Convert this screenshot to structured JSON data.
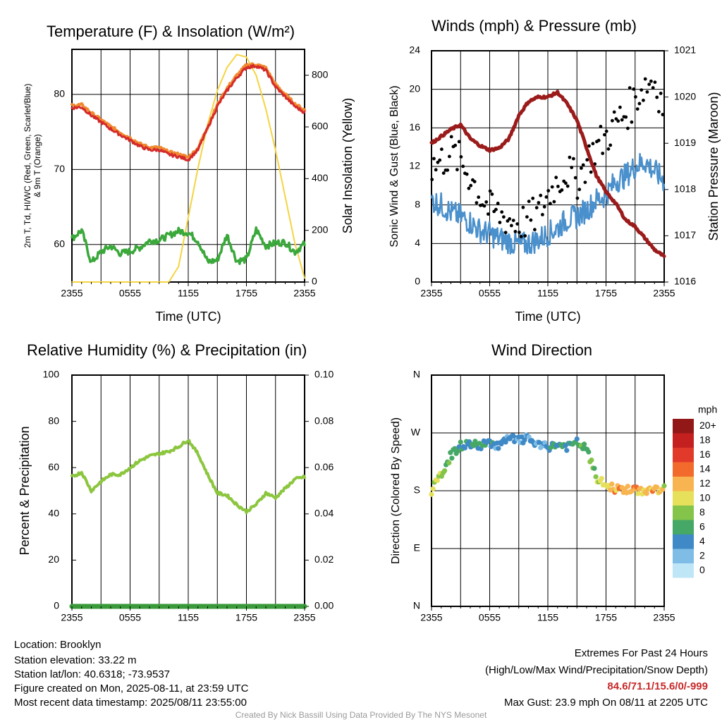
{
  "titles": {
    "temp": "Temperature (F) & Insolation (W/m²)",
    "wind": "Winds (mph) & Pressure (mb)",
    "rh": "Relative Humidity (%) & Precipitation (in)",
    "dir": "Wind Direction"
  },
  "axes": {
    "time_label": "Time (UTC)",
    "time_ticks": [
      "2355",
      "0555",
      "1155",
      "1755",
      "2355"
    ],
    "temp_ylabel_line1": "2m T, Td, HI/WC (Red, Green, Scarlet/Blue)",
    "temp_ylabel_line2": "& 9m T (Orange)",
    "temp_yticks": [
      "60",
      "70",
      "80"
    ],
    "insol_ylabel": "Solar Insolation (Yellow)",
    "insol_yticks": [
      "0",
      "200",
      "400",
      "600",
      "800"
    ],
    "wind_ylabel": "Sonic Wind & Gust (Blue, Black)",
    "wind_yticks": [
      "0",
      "4",
      "8",
      "12",
      "16",
      "20",
      "24"
    ],
    "pres_ylabel": "Station Pressure (Maroon)",
    "pres_yticks": [
      "1016",
      "1017",
      "1018",
      "1019",
      "1020",
      "1021"
    ],
    "rh_ylabel": "Percent & Precipitation",
    "rh_yticks": [
      "0",
      "20",
      "40",
      "60",
      "80",
      "100"
    ],
    "precip_yticks": [
      "0.00",
      "0.02",
      "0.04",
      "0.06",
      "0.08",
      "0.10"
    ],
    "dir_ylabel": "Direction (Colored By Speed)",
    "dir_yticks": [
      "N",
      "E",
      "S",
      "W",
      "N"
    ]
  },
  "colorbar": {
    "unit": "mph",
    "labels": [
      "0",
      "2",
      "4",
      "6",
      "8",
      "10",
      "12",
      "14",
      "16",
      "18",
      "20+"
    ],
    "colors": [
      "#bfe6f7",
      "#7fbde6",
      "#3f89c6",
      "#46a866",
      "#84c44a",
      "#e6e05a",
      "#f8b450",
      "#f26a2c",
      "#e23a2a",
      "#c42020",
      "#921818"
    ]
  },
  "footer": {
    "location": "Location: Brooklyn",
    "elevation": "Station elevation: 33.22 m",
    "latlon": "Station lat/lon: 40.6318; -73.9537",
    "created": "Figure created on Mon, 2025-08-11, at 23:59 UTC",
    "recent": "Most recent data timestamp: 2025/08/11 23:55:00",
    "extremes_title": "Extremes For Past 24 Hours",
    "extremes_legend": "(High/Low/Max Wind/Precipitation/Snow Depth)",
    "extremes_values": "84.6/71.1/15.6/0/-999",
    "max_gust": "Max Gust: 23.9 mph On 08/11 at 2205 UTC",
    "credit": "Created By Nick Bassill Using Data Provided By The NYS Mesonet"
  },
  "colors": {
    "temp": "#d42a2a",
    "temp9m": "#f08a30",
    "dewpoint": "#3aa83a",
    "insolation": "#f4d442",
    "wind": "#4a90cc",
    "gust": "#000000",
    "pressure": "#9b1b1b",
    "rh": "#8cc63f",
    "precip": "#3a9a3a",
    "extremes": "#c62828"
  },
  "chart_data": [
    {
      "type": "line",
      "panel": "temp",
      "x_hours": [
        0,
        1,
        2,
        3,
        4,
        5,
        6,
        7,
        8,
        9,
        10,
        11,
        12,
        13,
        14,
        15,
        16,
        17,
        18,
        19,
        20,
        21,
        22,
        23,
        24
      ],
      "ylim": [
        55,
        86
      ],
      "ylim_right": [
        0,
        900
      ],
      "series": [
        {
          "name": "2m T",
          "color": "#d42a2a",
          "values": [
            78.2,
            78.3,
            77.2,
            76.3,
            75.4,
            74.6,
            73.9,
            73.1,
            72.6,
            72.6,
            72.0,
            71.7,
            71.3,
            72.6,
            75.5,
            78.4,
            80.5,
            82.2,
            83.6,
            83.8,
            83.2,
            81.0,
            79.7,
            78.4,
            77.6
          ]
        },
        {
          "name": "9m T",
          "color": "#f08a30",
          "values": [
            78.5,
            78.6,
            77.5,
            76.6,
            75.7,
            74.9,
            74.2,
            73.4,
            72.9,
            72.9,
            72.3,
            72.0,
            71.6,
            72.8,
            75.7,
            78.6,
            80.8,
            82.5,
            83.9,
            84.0,
            83.5,
            81.3,
            80.0,
            78.7,
            77.9
          ]
        },
        {
          "name": "Td",
          "color": "#3aa83a",
          "values": [
            60.8,
            61.9,
            57.6,
            59.0,
            59.8,
            58.8,
            59.1,
            59.6,
            60.5,
            60.6,
            61.2,
            61.8,
            61.6,
            60.5,
            57.7,
            57.9,
            61.3,
            57.8,
            58.0,
            62.0,
            59.8,
            60.2,
            60.3,
            59.0,
            60.1
          ]
        },
        {
          "name": "Solar Insolation",
          "axis": "right",
          "color": "#f4d442",
          "values": [
            0,
            0,
            0,
            0,
            0,
            0,
            0,
            0,
            0,
            0,
            0,
            60,
            250,
            440,
            610,
            740,
            830,
            880,
            870,
            800,
            670,
            510,
            330,
            150,
            15
          ]
        }
      ]
    },
    {
      "type": "line",
      "panel": "wind",
      "x_hours": [
        0,
        1,
        2,
        3,
        4,
        5,
        6,
        7,
        8,
        9,
        10,
        11,
        12,
        13,
        14,
        15,
        16,
        17,
        18,
        19,
        20,
        21,
        22,
        23,
        24
      ],
      "ylim": [
        0,
        24
      ],
      "ylim_right": [
        1016,
        1021
      ],
      "series": [
        {
          "name": "Sonic Wind",
          "color": "#4a90cc",
          "values": [
            8.5,
            8.0,
            7.2,
            6.8,
            6.2,
            5.3,
            5.0,
            4.5,
            4.2,
            3.8,
            4.0,
            4.4,
            5.0,
            5.6,
            6.5,
            6.8,
            7.5,
            8.5,
            9.0,
            10.5,
            11.0,
            12.0,
            12.5,
            11.5,
            10.5
          ]
        },
        {
          "name": "Gust",
          "color": "#000000",
          "values": [
            12.0,
            12.5,
            13.5,
            12.5,
            11.0,
            9.0,
            7.5,
            7.0,
            6.5,
            6.0,
            6.5,
            7.0,
            9.0,
            10.5,
            11.5,
            10.5,
            12.5,
            14.0,
            15.0,
            16.5,
            17.5,
            19.0,
            20.5,
            21.0,
            18.0
          ]
        },
        {
          "name": "Station Pressure",
          "axis": "right",
          "color": "#9b1b1b",
          "values": [
            1019.0,
            1019.15,
            1019.3,
            1019.4,
            1019.1,
            1018.95,
            1018.85,
            1018.9,
            1019.1,
            1019.6,
            1019.9,
            1020.0,
            1020.0,
            1020.1,
            1019.85,
            1019.5,
            1018.9,
            1018.3,
            1017.95,
            1017.7,
            1017.35,
            1017.2,
            1016.95,
            1016.7,
            1016.55
          ]
        }
      ]
    },
    {
      "type": "line",
      "panel": "rh",
      "x_hours": [
        0,
        1,
        2,
        3,
        4,
        5,
        6,
        7,
        8,
        9,
        10,
        11,
        12,
        13,
        14,
        15,
        16,
        17,
        18,
        19,
        20,
        21,
        22,
        23,
        24
      ],
      "ylim": [
        0,
        100
      ],
      "ylim_right": [
        0.0,
        0.1
      ],
      "series": [
        {
          "name": "Relative Humidity",
          "color": "#8cc63f",
          "values": [
            56,
            58,
            50,
            54,
            57,
            57,
            60,
            63,
            65,
            66,
            67,
            69,
            72,
            66,
            57,
            49,
            48,
            44,
            41,
            44,
            49,
            47,
            51,
            55,
            56
          ]
        },
        {
          "name": "Precipitation",
          "axis": "right",
          "color": "#3a9a3a",
          "values": [
            0,
            0,
            0,
            0,
            0,
            0,
            0,
            0,
            0,
            0,
            0,
            0,
            0,
            0,
            0,
            0,
            0,
            0,
            0,
            0,
            0,
            0,
            0,
            0,
            0
          ]
        }
      ]
    },
    {
      "type": "scatter",
      "panel": "direction",
      "x_hours": [
        0,
        1,
        2,
        3,
        4,
        5,
        6,
        7,
        8,
        9,
        10,
        11,
        12,
        13,
        14,
        15,
        16,
        17,
        18,
        19,
        20,
        21,
        22,
        23,
        24
      ],
      "direction_deg": [
        180,
        205,
        235,
        250,
        253,
        250,
        255,
        250,
        262,
        258,
        262,
        250,
        248,
        252,
        248,
        255,
        245,
        200,
        188,
        183,
        182,
        180,
        180,
        182,
        182
      ],
      "speed_mph": [
        9,
        9,
        6,
        5,
        5,
        5,
        4,
        4,
        4,
        4,
        3,
        3,
        4,
        5,
        5,
        6,
        7,
        8,
        10,
        12,
        13,
        12,
        11,
        12,
        10
      ],
      "y_ticks": [
        "N",
        "E",
        "S",
        "W",
        "N"
      ],
      "ylim": [
        0,
        360
      ]
    }
  ]
}
